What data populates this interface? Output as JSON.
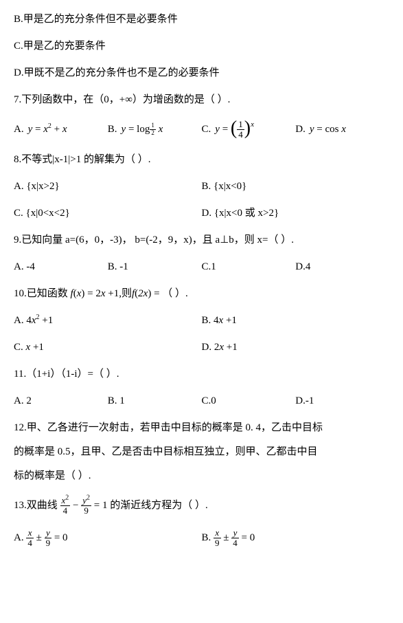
{
  "q6": {
    "B": "B.甲是乙的充分条件但不是必要条件",
    "C": "C.甲是乙的充要条件",
    "D": "D.甲既不是乙的充分条件也不是乙的必要条件"
  },
  "q7": {
    "stem_pre": "7.下列函数中，在（0，+∞）为增函数的是（  ）.",
    "A": {
      "label": "A.",
      "lhs": "y",
      "eq": " = ",
      "rhs1": "x",
      "sup": "2",
      "plus": " + ",
      "rhs2": "x"
    },
    "B": {
      "label": "B.",
      "lhs": "y",
      "eq": " = ",
      "func": "log",
      "base_num": "1",
      "base_den": "2",
      "arg": " x"
    },
    "C": {
      "label": "C.",
      "lhs": "y",
      "eq": " = ",
      "frac_num": "1",
      "frac_den": "4",
      "exp": "x"
    },
    "D": {
      "label": "D.",
      "lhs": "y",
      "eq": " = ",
      "func": "cos",
      "arg": " x"
    }
  },
  "q8": {
    "stem": "8.不等式|x-1|>1 的解集为（  ）.",
    "A": "A.  {x|x>2}",
    "B": "B.  {x|x<0}",
    "C": "C.  {x|0<x<2}",
    "D": "D.  {x|x<0 或 x>2}"
  },
  "q9": {
    "stem": "9.已知向量 a=(6，0，-3)，   b=(-2，9，x)，且 a⊥b，则 x=（  ）.",
    "A": "A. -4",
    "B": "B. -1",
    "C": "C.1",
    "D": "D.4"
  },
  "q10": {
    "stem_pre": "10.已知函数 ",
    "f": "f",
    "lp": "(",
    "x": "x",
    "rp": ")",
    "eq": " = 2",
    "x2": "x",
    "plus1": " +1,",
    "mid": "则",
    "f2": "f",
    "lp2": "(",
    "tx": "2x",
    "rp2": ")",
    "eq2": " = （  ）.",
    "A": {
      "label": "A.   ",
      "c": "4",
      "v": "x",
      "sup": "2",
      "tail": " +1"
    },
    "B": {
      "label": "B.   ",
      "c": "4",
      "v": "x",
      "tail": " +1"
    },
    "C": {
      "label": "C.   ",
      "v": "x",
      "tail": " +1"
    },
    "D": {
      "label": "D.   ",
      "c": "2",
      "v": "x",
      "tail": " +1"
    }
  },
  "q11": {
    "stem": "11.（1+i）（1-i）=（  ）.",
    "A": "A. 2",
    "B": "B. 1",
    "C": "C.0",
    "D": "D.-1"
  },
  "q12": {
    "l1": "12.甲、乙各进行一次射击，若甲击中目标的概率是 0. 4，乙击中目标",
    "l2": "的概率是 0.5，且甲、乙是否击中目标相互独立，则甲、乙都击中目",
    "l3": "标的概率是（  ）."
  },
  "q13": {
    "stem_pre": "13.双曲线 ",
    "t1n": "x",
    "t1s": "2",
    "t1d": "4",
    "minus": " − ",
    "t2n": "y",
    "t2s": "2",
    "t2d": "9",
    "eq": " = 1",
    "stem_post": "的渐近线方程为（  ）.",
    "A": {
      "label": "A.   ",
      "n1": "x",
      "d1": "4",
      "pm": " ± ",
      "n2": "y",
      "d2": "9",
      "eq": " = 0"
    },
    "B": {
      "label": "B.   ",
      "n1": "x",
      "d1": "9",
      "pm": " ± ",
      "n2": "y",
      "d2": "4",
      "eq": " = 0"
    }
  }
}
